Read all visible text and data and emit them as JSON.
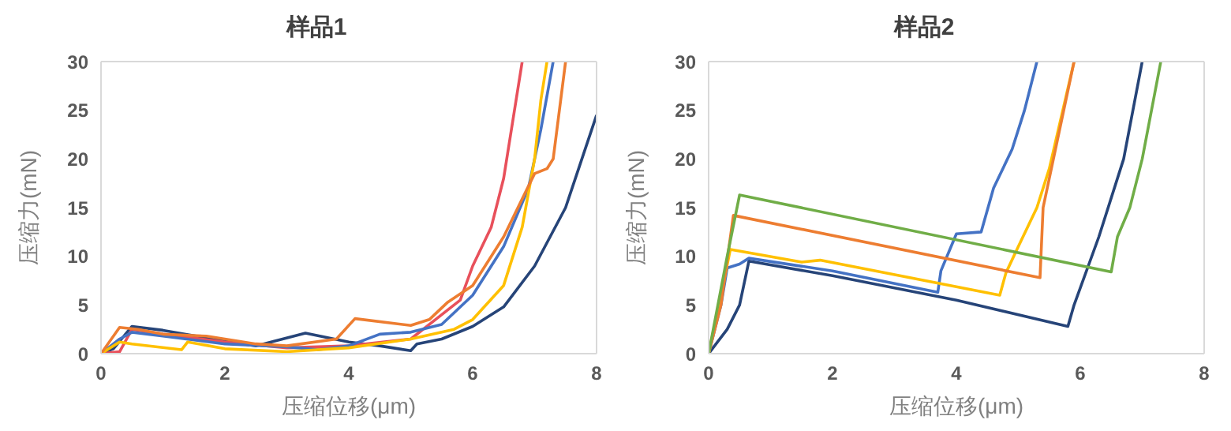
{
  "chart_data": [
    {
      "type": "line",
      "title": "样品1",
      "xlabel": "压缩位移(μm)",
      "ylabel": "压缩力(mN)",
      "xlim": [
        0,
        8
      ],
      "xticks": [
        0,
        2,
        4,
        6,
        8
      ],
      "ylim": [
        0,
        30
      ],
      "yticks": [
        0,
        5,
        10,
        15,
        20,
        25,
        30
      ],
      "marker": "none",
      "line_style": "solid",
      "series": [
        {
          "color": "#264478",
          "x": [
            0,
            0.2,
            0.5,
            1,
            2,
            2.5,
            3.3,
            4,
            4.5,
            5,
            5.1,
            5.5,
            6,
            6.5,
            7,
            7.5,
            8
          ],
          "values": [
            0,
            0.5,
            2.8,
            2.4,
            1.3,
            0.8,
            2.1,
            1.2,
            0.8,
            0.3,
            1,
            1.5,
            2.8,
            4.8,
            9,
            15,
            24.5
          ]
        },
        {
          "color": "#e8505b",
          "x": [
            0,
            0.3,
            0.5,
            1,
            2,
            3,
            4,
            5,
            5.5,
            5.8,
            6,
            6.3,
            6.5,
            6.7,
            6.8
          ],
          "values": [
            0,
            0.2,
            2.5,
            2,
            1.2,
            0.6,
            0.8,
            1.5,
            4,
            5.5,
            9,
            13,
            18,
            26,
            30
          ]
        },
        {
          "color": "#4472c4",
          "x": [
            0,
            0.3,
            0.5,
            1,
            2,
            3,
            3.5,
            4,
            4.5,
            5,
            5.5,
            6,
            6.5,
            6.9,
            7.1,
            7.3
          ],
          "values": [
            0,
            1.5,
            2.2,
            1.8,
            1,
            0.7,
            0.4,
            0.8,
            2,
            2.2,
            3,
            6,
            11,
            17,
            23,
            30
          ]
        },
        {
          "color": "#ffc000",
          "x": [
            0,
            0.3,
            0.5,
            1.3,
            1.4,
            2,
            3,
            4,
            5,
            5.7,
            6,
            6.5,
            6.8,
            7,
            7.1,
            7.2
          ],
          "values": [
            0,
            1.2,
            1,
            0.4,
            1.2,
            0.5,
            0.2,
            0.6,
            1.5,
            2.5,
            3.5,
            7,
            13,
            20,
            26,
            30
          ]
        },
        {
          "color": "#ed7d31",
          "x": [
            0,
            0.3,
            0.6,
            1,
            1.7,
            2.5,
            3,
            3.8,
            4.1,
            5,
            5.3,
            5.6,
            6,
            6.5,
            7,
            7.2,
            7.3,
            7.5
          ],
          "values": [
            0,
            2.7,
            2.5,
            2,
            1.8,
            1,
            0.8,
            1.5,
            3.6,
            2.9,
            3.5,
            5.3,
            7,
            12,
            18.5,
            19,
            20,
            30
          ]
        }
      ]
    },
    {
      "type": "line",
      "title": "样品2",
      "xlabel": "压缩位移(μm)",
      "ylabel": "压缩力(mN)",
      "xlim": [
        0,
        8
      ],
      "xticks": [
        0,
        2,
        4,
        6,
        8
      ],
      "ylim": [
        0,
        30
      ],
      "yticks": [
        0,
        5,
        10,
        15,
        20,
        25,
        30
      ],
      "marker": "none",
      "line_style": "solid",
      "series": [
        {
          "color": "#264478",
          "x": [
            0,
            0.3,
            0.5,
            0.65,
            2,
            4,
            5.8,
            5.9,
            6.3,
            6.7,
            7
          ],
          "values": [
            0,
            2.5,
            5,
            9.5,
            8,
            5.5,
            2.8,
            5,
            12,
            20,
            30
          ]
        },
        {
          "color": "#4472c4",
          "x": [
            0,
            0.2,
            0.3,
            0.5,
            0.65,
            2,
            3.7,
            3.75,
            4,
            4.4,
            4.6,
            4.9,
            5.1,
            5.3
          ],
          "values": [
            0,
            5,
            8.8,
            9.2,
            9.8,
            8.5,
            6.3,
            8.5,
            12.3,
            12.5,
            17,
            21,
            25,
            30
          ]
        },
        {
          "color": "#ffc000",
          "x": [
            0,
            0.2,
            0.35,
            1.5,
            1.8,
            4.7,
            4.8,
            5,
            5.3,
            5.5,
            5.9
          ],
          "values": [
            0,
            6,
            10.7,
            9.4,
            9.6,
            6,
            8.3,
            11,
            15,
            19,
            30
          ]
        },
        {
          "color": "#ed7d31",
          "x": [
            0,
            0.2,
            0.4,
            5.35,
            5.4,
            5.5,
            5.9
          ],
          "values": [
            0,
            5,
            14.2,
            7.8,
            15,
            18,
            30
          ]
        },
        {
          "color": "#70ad47",
          "x": [
            0,
            0.3,
            0.5,
            6.5,
            6.6,
            6.8,
            7,
            7.3
          ],
          "values": [
            0,
            10,
            16.3,
            8.4,
            12,
            15,
            20,
            30
          ]
        }
      ]
    }
  ]
}
